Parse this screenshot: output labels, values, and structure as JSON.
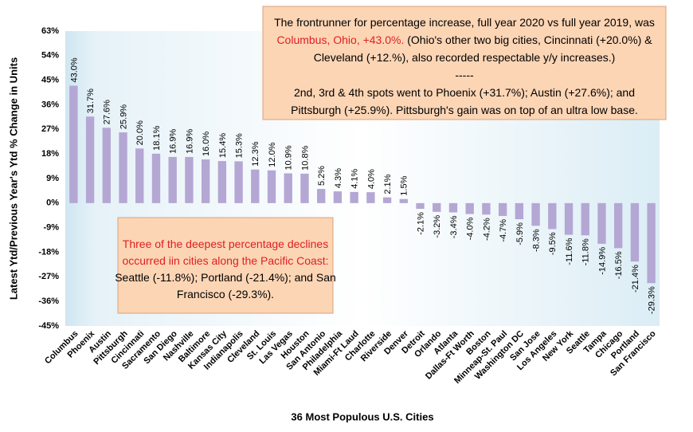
{
  "chart_data": {
    "type": "bar",
    "x_label": "36 Most Populous U.S. Cities",
    "y_label": "Latest Ytd/Previous Year's Ytd % Change in Units",
    "categories": [
      "Columbus",
      "Phoenix",
      "Austin",
      "Pittsburgh",
      "Cincinnati",
      "Sacramento",
      "San Diego",
      "Nashville",
      "Baltimore",
      "Kansas City",
      "Indianapolis",
      "Cleveland",
      "St. Louis",
      "Las Vegas",
      "Houston",
      "San Antonio",
      "Philadelphia",
      "Miami-Ft Laud",
      "Charlotte",
      "Riverside",
      "Denver",
      "Detroit",
      "Orlando",
      "Atlanta",
      "Dallas-Ft Worth",
      "Boston",
      "Minneap-St. Paul",
      "Washington DC",
      "San Jose",
      "Los Angeles",
      "New York",
      "Seattle",
      "Tampa",
      "Chicago",
      "Portland",
      "San Francisco"
    ],
    "values": [
      43.0,
      31.7,
      27.6,
      25.9,
      20.0,
      18.1,
      16.9,
      16.9,
      16.0,
      15.4,
      15.3,
      12.3,
      12.0,
      10.9,
      10.8,
      5.2,
      4.3,
      4.1,
      4.0,
      2.1,
      1.5,
      -2.1,
      -3.2,
      -3.4,
      -4.0,
      -4.2,
      -4.7,
      -5.9,
      -8.3,
      -9.5,
      -11.6,
      -11.8,
      -14.9,
      -16.5,
      -21.4,
      -29.3
    ],
    "value_labels": [
      "43.0%",
      "31.7%",
      "27.6%",
      "25.9%",
      "20.0%",
      "18.1%",
      "16.9%",
      "16.9%",
      "16.0%",
      "15.4%",
      "15.3%",
      "12.3%",
      "12.0%",
      "10.9%",
      "10.8%",
      "5.2%",
      "4.3%",
      "4.1%",
      "4.0%",
      "2.1%",
      "1.5%",
      "-2.1%",
      "-3.2%",
      "-3.4%",
      "-4.0%",
      "-4.2%",
      "-4.7%",
      "-5.9%",
      "-8.3%",
      "-9.5%",
      "-11.6%",
      "-11.8%",
      "-14.9%",
      "-16.5%",
      "-21.4%",
      "-29.3%"
    ],
    "color": "#b4a7d4",
    "ylim": [
      -45,
      63
    ],
    "yticks": [
      {
        "value": -45,
        "label": "-45%"
      },
      {
        "value": -36,
        "label": "-36%"
      },
      {
        "value": -27,
        "label": "-27%"
      },
      {
        "value": -18,
        "label": "-18%"
      },
      {
        "value": -9,
        "label": "-9%"
      },
      {
        "value": 0,
        "label": "0%"
      },
      {
        "value": 9,
        "label": "9%"
      },
      {
        "value": 18,
        "label": "18%"
      },
      {
        "value": 27,
        "label": "27%"
      },
      {
        "value": 36,
        "label": "36%"
      },
      {
        "value": 45,
        "label": "45%"
      },
      {
        "value": 54,
        "label": "54%"
      },
      {
        "value": 63,
        "label": "63%"
      }
    ],
    "grid": false,
    "annotations": [
      {
        "lines": [
          [
            {
              "text": "The frontrunner for percentage increase, full year 2020 vs full year 2019, was"
            }
          ],
          [
            {
              "text": "Columbus, Ohio, +43.0%.",
              "color": "#e02020"
            },
            {
              "text": " (Ohio's other two big cities, Cincinnati (+20.0%) &"
            }
          ],
          [
            {
              "text": "Cleveland (+12.%), also recorded respectable y/y increases.)"
            }
          ],
          [
            {
              "text": "-----"
            }
          ],
          [
            {
              "text": "2nd, 3rd & 4th spots went to Phoenix (+31.7%); Austin (+27.6%); and"
            }
          ],
          [
            {
              "text": "Pittsburgh (+25.9%). Pittsburgh's gain was on top of an ultra low base."
            }
          ]
        ]
      },
      {
        "lines": [
          [
            {
              "text": "Three of the deepest percentage declines",
              "color": "#e02020"
            }
          ],
          [
            {
              "text": "occurred iin cities along the Pacific Coast:",
              "color": "#e02020"
            }
          ],
          [
            {
              "text": "Seattle (-11.8%); Portland (-21.4%); and San"
            }
          ],
          [
            {
              "text": "Francisco (-29.3%)."
            }
          ]
        ]
      }
    ]
  }
}
